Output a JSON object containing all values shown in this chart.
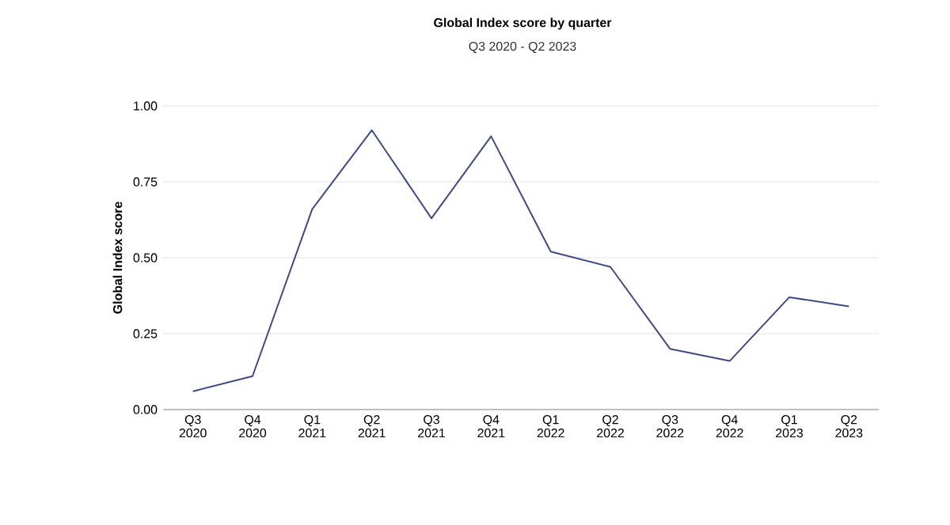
{
  "chart_data": {
    "type": "line",
    "title": "Global Index score by quarter",
    "subtitle": "Q3 2020 - Q2 2023",
    "ylabel": "Global Index score",
    "categories": [
      "Q3 2020",
      "Q4 2020",
      "Q1 2021",
      "Q2 2021",
      "Q3 2021",
      "Q4 2021",
      "Q1 2022",
      "Q2 2022",
      "Q3 2022",
      "Q4 2022",
      "Q1 2023",
      "Q2 2023"
    ],
    "series": [
      {
        "color": "#3f4a80",
        "values": [
          0.06,
          0.11,
          0.66,
          0.92,
          0.63,
          0.9,
          0.52,
          0.47,
          0.2,
          0.16,
          0.37,
          0.34
        ]
      }
    ],
    "ylim": [
      0,
      1
    ],
    "yticks": [
      {
        "value": 0,
        "label": "0.00"
      },
      {
        "value": 0.25,
        "label": "0.25"
      },
      {
        "value": 0.5,
        "label": "0.50"
      },
      {
        "value": 0.75,
        "label": "0.75"
      },
      {
        "value": 1,
        "label": "1.00"
      }
    ],
    "grid": "y",
    "marker": "none",
    "line_style": "solid"
  }
}
